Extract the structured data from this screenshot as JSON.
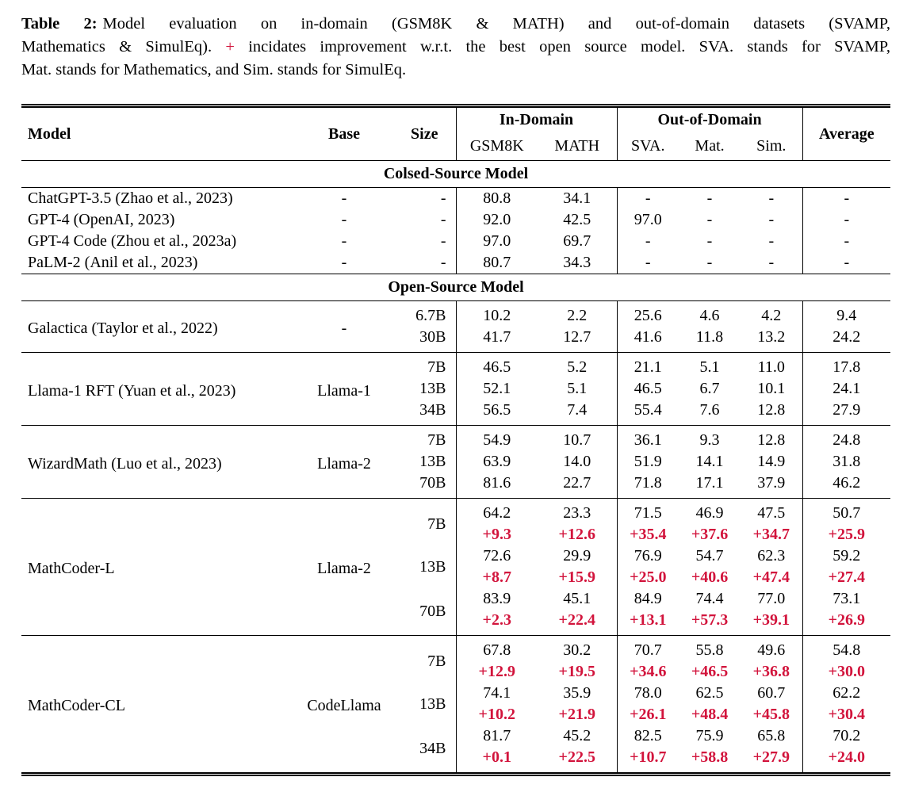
{
  "colors": {
    "delta_red": "#d2143c",
    "text": "#000000",
    "rule": "#000000",
    "background": "#ffffff"
  },
  "caption": {
    "lines": [
      {
        "parts": [
          {
            "text": "Table 2:",
            "style": "bold"
          },
          {
            "text": "Model evaluation on in-domain (GSM8K & MATH) and out-of-domain datasets (SVAMP,",
            "style": "normal"
          }
        ]
      },
      {
        "parts": [
          {
            "text": "Mathematics & SimulEq). ",
            "style": "normal"
          },
          {
            "text": "+",
            "style": "red"
          },
          {
            "text": " incidates improvement w.r.t. the best open source model. SVA. stands for SVAMP,",
            "style": "normal"
          }
        ]
      },
      {
        "parts": [
          {
            "text": "Mat. stands for Mathematics, and Sim. stands for SimulEq.",
            "style": "normal"
          }
        ]
      }
    ]
  },
  "table": {
    "header": {
      "model": "Model",
      "base": "Base",
      "size": "Size",
      "in_domain": "In-Domain",
      "out_of_domain": "Out-of-Domain",
      "average": "Average",
      "sub_columns": [
        "GSM8K",
        "MATH",
        "SVA.",
        "Mat.",
        "Sim."
      ]
    },
    "sections": [
      {
        "title": "Colsed-Source Model",
        "group_dividers": false,
        "groups": [
          {
            "model": "ChatGPT-3.5 (Zhao et al., 2023)",
            "base": "-",
            "entries": [
              {
                "size": "-",
                "values": [
                  "80.8",
                  "34.1",
                  "-",
                  "-",
                  "-",
                  "-"
                ]
              }
            ]
          },
          {
            "model": "GPT-4 (OpenAI, 2023)",
            "base": "-",
            "entries": [
              {
                "size": "-",
                "values": [
                  "92.0",
                  "42.5",
                  "97.0",
                  "-",
                  "-",
                  "-"
                ]
              }
            ]
          },
          {
            "model": "GPT-4 Code (Zhou et al., 2023a)",
            "base": "-",
            "entries": [
              {
                "size": "-",
                "values": [
                  "97.0",
                  "69.7",
                  "-",
                  "-",
                  "-",
                  "-"
                ]
              }
            ]
          },
          {
            "model": "PaLM-2 (Anil et al., 2023)",
            "base": "-",
            "entries": [
              {
                "size": "-",
                "values": [
                  "80.7",
                  "34.3",
                  "-",
                  "-",
                  "-",
                  "-"
                ]
              }
            ]
          }
        ]
      },
      {
        "title": "Open-Source Model",
        "group_dividers": true,
        "groups": [
          {
            "model": "Galactica (Taylor et al., 2022)",
            "base": "-",
            "entries": [
              {
                "size": "6.7B",
                "values": [
                  "10.2",
                  "2.2",
                  "25.6",
                  "4.6",
                  "4.2",
                  "9.4"
                ]
              },
              {
                "size": "30B",
                "values": [
                  "41.7",
                  "12.7",
                  "41.6",
                  "11.8",
                  "13.2",
                  "24.2"
                ]
              }
            ]
          },
          {
            "model": "Llama-1 RFT (Yuan et al., 2023)",
            "base": "Llama-1",
            "entries": [
              {
                "size": "7B",
                "values": [
                  "46.5",
                  "5.2",
                  "21.1",
                  "5.1",
                  "11.0",
                  "17.8"
                ]
              },
              {
                "size": "13B",
                "values": [
                  "52.1",
                  "5.1",
                  "46.5",
                  "6.7",
                  "10.1",
                  "24.1"
                ]
              },
              {
                "size": "34B",
                "values": [
                  "56.5",
                  "7.4",
                  "55.4",
                  "7.6",
                  "12.8",
                  "27.9"
                ]
              }
            ]
          },
          {
            "model": "WizardMath (Luo et al., 2023)",
            "base": "Llama-2",
            "entries": [
              {
                "size": "7B",
                "values": [
                  "54.9",
                  "10.7",
                  "36.1",
                  "9.3",
                  "12.8",
                  "24.8"
                ]
              },
              {
                "size": "13B",
                "values": [
                  "63.9",
                  "14.0",
                  "51.9",
                  "14.1",
                  "14.9",
                  "31.8"
                ]
              },
              {
                "size": "70B",
                "values": [
                  "81.6",
                  "22.7",
                  "71.8",
                  "17.1",
                  "37.9",
                  "46.2"
                ]
              }
            ]
          },
          {
            "model": "MathCoder-L",
            "base": "Llama-2",
            "entries": [
              {
                "size": "7B",
                "values": [
                  "64.2",
                  "23.3",
                  "71.5",
                  "46.9",
                  "47.5",
                  "50.7"
                ],
                "deltas": [
                  "+9.3",
                  "+12.6",
                  "+35.4",
                  "+37.6",
                  "+34.7",
                  "+25.9"
                ]
              },
              {
                "size": "13B",
                "values": [
                  "72.6",
                  "29.9",
                  "76.9",
                  "54.7",
                  "62.3",
                  "59.2"
                ],
                "deltas": [
                  "+8.7",
                  "+15.9",
                  "+25.0",
                  "+40.6",
                  "+47.4",
                  "+27.4"
                ]
              },
              {
                "size": "70B",
                "values": [
                  "83.9",
                  "45.1",
                  "84.9",
                  "74.4",
                  "77.0",
                  "73.1"
                ],
                "deltas": [
                  "+2.3",
                  "+22.4",
                  "+13.1",
                  "+57.3",
                  "+39.1",
                  "+26.9"
                ]
              }
            ]
          },
          {
            "model": "MathCoder-CL",
            "base": "CodeLlama",
            "entries": [
              {
                "size": "7B",
                "values": [
                  "67.8",
                  "30.2",
                  "70.7",
                  "55.8",
                  "49.6",
                  "54.8"
                ],
                "deltas": [
                  "+12.9",
                  "+19.5",
                  "+34.6",
                  "+46.5",
                  "+36.8",
                  "+30.0"
                ]
              },
              {
                "size": "13B",
                "values": [
                  "74.1",
                  "35.9",
                  "78.0",
                  "62.5",
                  "60.7",
                  "62.2"
                ],
                "deltas": [
                  "+10.2",
                  "+21.9",
                  "+26.1",
                  "+48.4",
                  "+45.8",
                  "+30.4"
                ]
              },
              {
                "size": "34B",
                "values": [
                  "81.7",
                  "45.2",
                  "82.5",
                  "75.9",
                  "65.8",
                  "70.2"
                ],
                "deltas": [
                  "+0.1",
                  "+22.5",
                  "+10.7",
                  "+58.8",
                  "+27.9",
                  "+24.0"
                ]
              }
            ]
          }
        ]
      }
    ]
  }
}
